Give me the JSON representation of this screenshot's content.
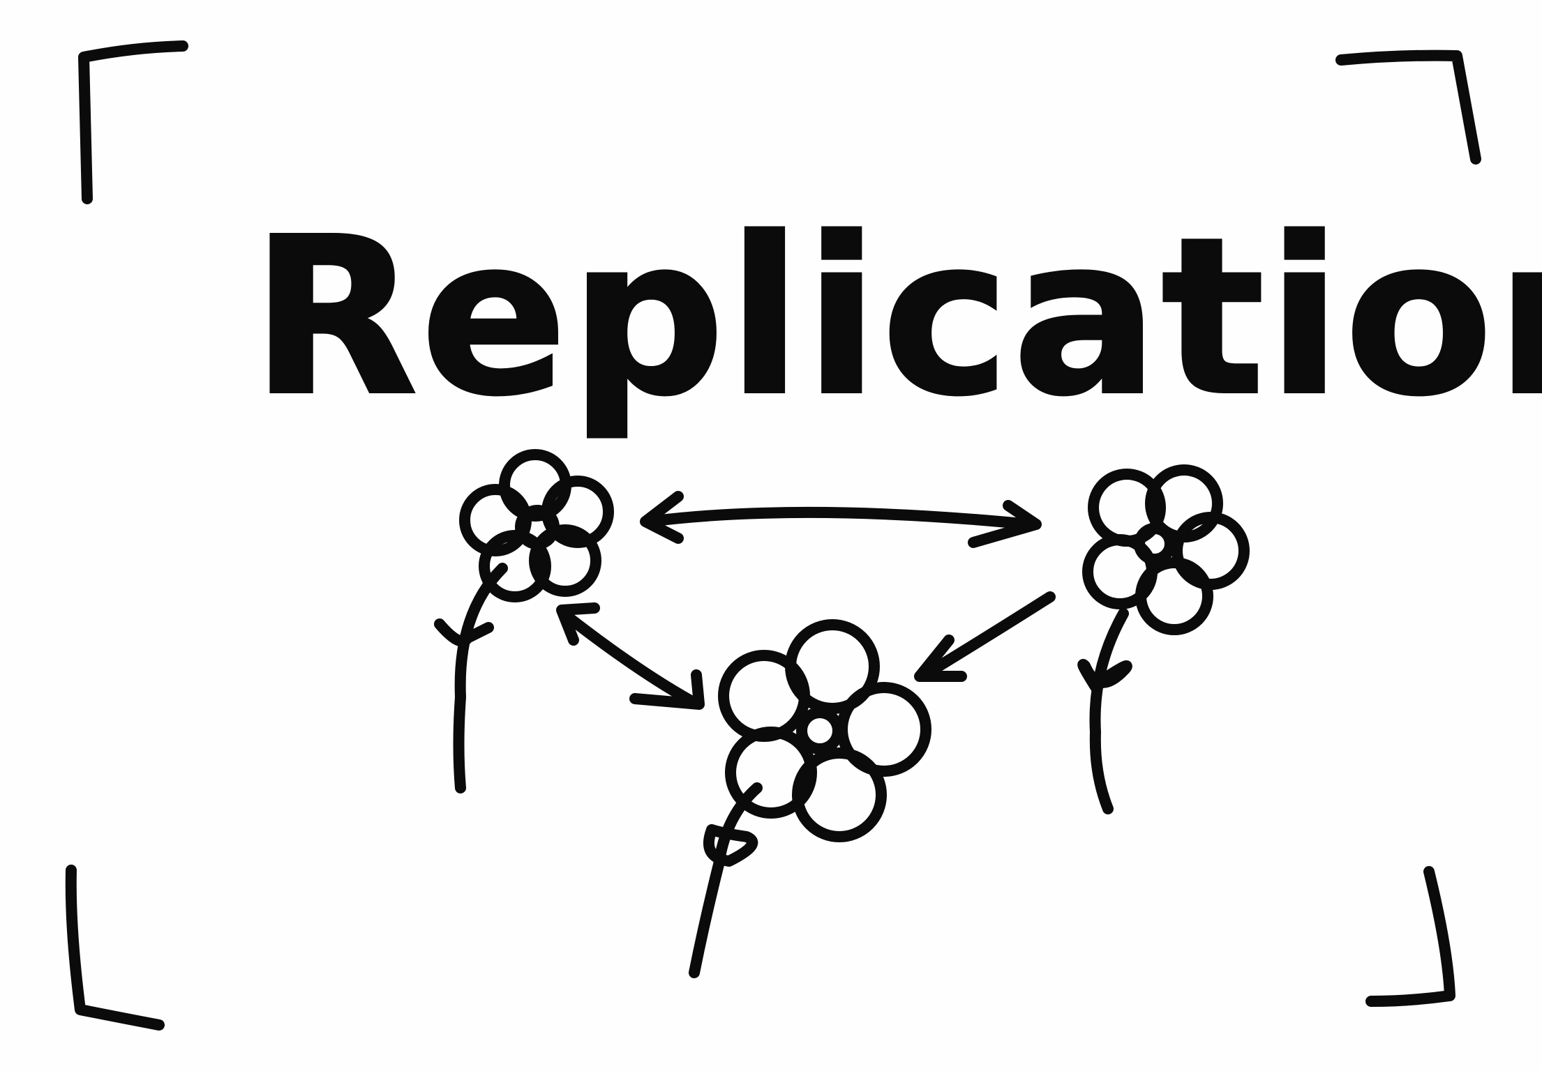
{
  "title": "Replication",
  "colors": {
    "background": "#fefefe",
    "ink": "#0b0b0b"
  },
  "nodes": [
    {
      "id": "flower-top-left",
      "icon": "flower-icon"
    },
    {
      "id": "flower-top-right",
      "icon": "flower-icon"
    },
    {
      "id": "flower-bottom-center",
      "icon": "flower-icon"
    }
  ],
  "edges": [
    {
      "from": "flower-top-left",
      "to": "flower-top-right",
      "direction": "both"
    },
    {
      "from": "flower-top-left",
      "to": "flower-bottom-center",
      "direction": "both"
    },
    {
      "from": "flower-top-right",
      "to": "flower-bottom-center",
      "direction": "forward"
    }
  ]
}
